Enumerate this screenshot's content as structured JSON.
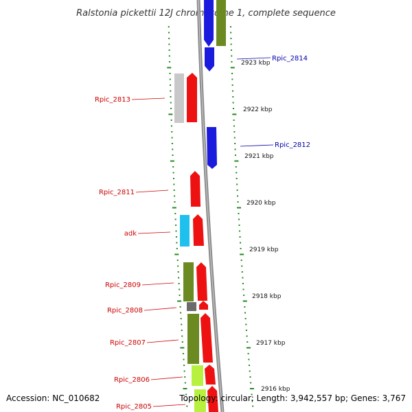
{
  "title": "Ralstonia pickettii 12J chromosome 1, complete sequence",
  "accession": "Accession: NC_010682",
  "topology": "Topology: circular; Length: 3,942,557 bp; Genes: 3,767",
  "colors": {
    "backbone": "#888888",
    "tick": "#22881e",
    "label_minus": "#cc0000",
    "label_plus": "#0000aa",
    "red": "#ee1111",
    "blue": "#1b1bdd",
    "olive": "#6b8a22",
    "cyan": "#1fc0ee",
    "gray": "#c8c8c8",
    "darkgray": "#6b6b6b",
    "lime": "#b8f040"
  },
  "scale_labels": [
    "2923 kbp",
    "2922 kbp",
    "2921 kbp",
    "2920 kbp",
    "2919 kbp",
    "2918 kbp",
    "2917 kbp",
    "2916 kbp"
  ],
  "gene_labels": [
    {
      "text": "Rpic_2814",
      "side": "right"
    },
    {
      "text": "Rpic_2813",
      "side": "left"
    },
    {
      "text": "Rpic_2812",
      "side": "right"
    },
    {
      "text": "Rpic_2811",
      "side": "left"
    },
    {
      "text": "adk",
      "side": "left"
    },
    {
      "text": "Rpic_2809",
      "side": "left"
    },
    {
      "text": "Rpic_2808",
      "side": "left"
    },
    {
      "text": "Rpic_2807",
      "side": "left"
    },
    {
      "text": "Rpic_2806",
      "side": "left"
    },
    {
      "text": "Rpic_2805",
      "side": "left"
    }
  ],
  "feature_icons": [
    "gene-arrow-red",
    "gene-arrow-blue",
    "cds-block-olive",
    "cds-block-gray",
    "cds-block-cyan",
    "cds-block-lime"
  ]
}
